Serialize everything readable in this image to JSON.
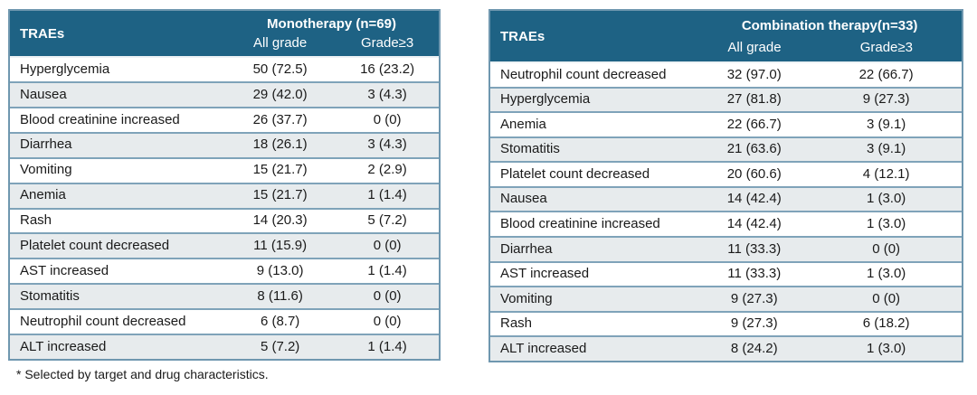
{
  "colors": {
    "header_bg": "#1e6284",
    "header_text": "#ffffff",
    "row_bg": "#ffffff",
    "row_alt_bg": "#e7ebed",
    "outer_border": "#6f97af",
    "row_divider": "#7fa3b9",
    "body_text": "#1a1a1a"
  },
  "footnote": "* Selected by target and drug characteristics.",
  "chart_data": [
    {
      "type": "table",
      "corner_label": "TRAEs",
      "title": "Monotherapy (n=69)",
      "col_headers": [
        "All grade",
        "Grade≥3"
      ],
      "columns": [
        "TRAEs",
        "All grade",
        "Grade≥3"
      ],
      "rows": [
        [
          "Hyperglycemia",
          "50 (72.5)",
          "16 (23.2)"
        ],
        [
          "Nausea",
          "29 (42.0)",
          "3 (4.3)"
        ],
        [
          "Blood creatinine increased",
          "26 (37.7)",
          "0 (0)"
        ],
        [
          "Diarrhea",
          "18 (26.1)",
          "3 (4.3)"
        ],
        [
          "Vomiting",
          "15 (21.7)",
          "2 (2.9)"
        ],
        [
          "Anemia",
          "15 (21.7)",
          "1 (1.4)"
        ],
        [
          "Rash",
          "14 (20.3)",
          "5 (7.2)"
        ],
        [
          "Platelet count decreased",
          "11 (15.9)",
          "0 (0)"
        ],
        [
          "AST increased",
          "9 (13.0)",
          "1 (1.4)"
        ],
        [
          "Stomatitis",
          "8 (11.6)",
          "0 (0)"
        ],
        [
          "Neutrophil count decreased",
          "6 (8.7)",
          "0 (0)"
        ],
        [
          "ALT increased",
          "5 (7.2)",
          "1 (1.4)"
        ]
      ]
    },
    {
      "type": "table",
      "corner_label": "TRAEs",
      "title": "Combination therapy(n=33)",
      "col_headers": [
        "All grade",
        "Grade≥3"
      ],
      "columns": [
        "TRAEs",
        "All grade",
        "Grade≥3"
      ],
      "rows": [
        [
          "Neutrophil count decreased",
          "32 (97.0)",
          "22 (66.7)"
        ],
        [
          "Hyperglycemia",
          "27 (81.8)",
          "9 (27.3)"
        ],
        [
          "Anemia",
          "22 (66.7)",
          "3 (9.1)"
        ],
        [
          "Stomatitis",
          "21 (63.6)",
          "3 (9.1)"
        ],
        [
          "Platelet count decreased",
          "20 (60.6)",
          "4 (12.1)"
        ],
        [
          "Nausea",
          "14 (42.4)",
          "1 (3.0)"
        ],
        [
          "Blood creatinine increased",
          "14 (42.4)",
          "1 (3.0)"
        ],
        [
          "Diarrhea",
          "11 (33.3)",
          "0 (0)"
        ],
        [
          "AST increased",
          "11 (33.3)",
          "1 (3.0)"
        ],
        [
          "Vomiting",
          "9 (27.3)",
          "0 (0)"
        ],
        [
          "Rash",
          "9 (27.3)",
          "6 (18.2)"
        ],
        [
          "ALT increased",
          "8 (24.2)",
          "1 (3.0)"
        ]
      ]
    }
  ]
}
